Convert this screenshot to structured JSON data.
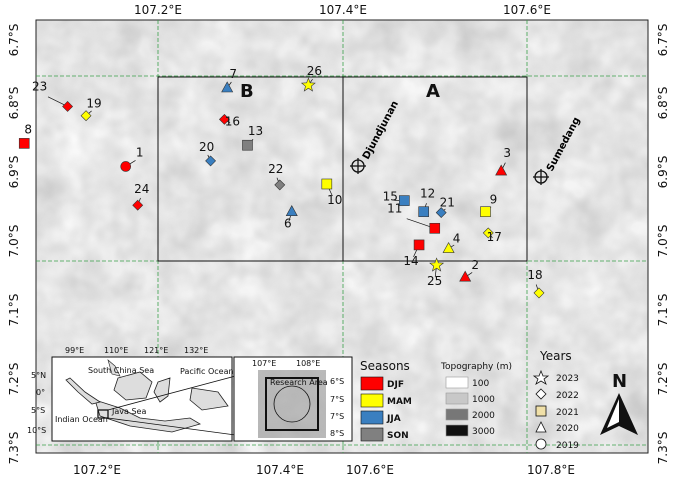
{
  "axes": {
    "x_ticks": [
      "107.2°E",
      "107.4°E",
      "107.6°E",
      "107.8°E"
    ],
    "y_ticks": [
      "6.7°S",
      "6.8°S",
      "6.9°S",
      "7.0°S",
      "7.1°S",
      "7.2°S",
      "7.3°S"
    ]
  },
  "regions": {
    "a_label": "A",
    "b_label": "B"
  },
  "towns": [
    {
      "name": "Djundjunan"
    },
    {
      "name": "Sumedang"
    }
  ],
  "events": [
    {
      "id": "1",
      "lon": 107.365,
      "lat": -6.898,
      "shape": "circle",
      "season": "DJF"
    },
    {
      "id": "2",
      "lon": 107.733,
      "lat": -7.018,
      "shape": "triangle",
      "season": "DJF"
    },
    {
      "id": "3",
      "lon": 107.772,
      "lat": -6.903,
      "shape": "triangle",
      "season": "DJF"
    },
    {
      "id": "4",
      "lon": 107.715,
      "lat": -6.987,
      "shape": "triangle",
      "season": "MAM"
    },
    {
      "id": "6",
      "lon": 107.545,
      "lat": -6.947,
      "shape": "triangle",
      "season": "JJA"
    },
    {
      "id": "7",
      "lon": 107.475,
      "lat": -6.813,
      "shape": "triangle",
      "season": "JJA"
    },
    {
      "id": "9",
      "lon": 107.755,
      "lat": -6.947,
      "shape": "square",
      "season": "MAM"
    },
    {
      "id": "10",
      "lon": 107.583,
      "lat": -6.917,
      "shape": "square",
      "season": "MAM"
    },
    {
      "id": "12",
      "lon": 107.688,
      "lat": -6.947,
      "shape": "square",
      "season": "JJA"
    },
    {
      "id": "13",
      "lon": 107.497,
      "lat": -6.875,
      "shape": "square",
      "season": "SON"
    },
    {
      "id": "14",
      "lon": 107.683,
      "lat": -6.983,
      "shape": "square",
      "season": "DJF"
    },
    {
      "id": "15",
      "lon": 107.667,
      "lat": -6.935,
      "shape": "square",
      "season": "JJA"
    },
    {
      "id": "16",
      "lon": 107.472,
      "lat": -6.847,
      "shape": "diamond",
      "season": "DJF"
    },
    {
      "id": "17",
      "lon": 107.758,
      "lat": -6.97,
      "shape": "diamond",
      "season": "MAM"
    },
    {
      "id": "18",
      "lon": 107.813,
      "lat": -7.035,
      "shape": "diamond",
      "season": "MAM"
    },
    {
      "id": "19",
      "lon": 107.322,
      "lat": -6.843,
      "shape": "diamond",
      "season": "MAM"
    },
    {
      "id": "20",
      "lon": 107.457,
      "lat": -6.892,
      "shape": "diamond",
      "season": "JJA"
    },
    {
      "id": "21",
      "lon": 107.707,
      "lat": -6.948,
      "shape": "diamond",
      "season": "JJA"
    },
    {
      "id": "22",
      "lon": 107.532,
      "lat": -6.918,
      "shape": "diamond",
      "season": "SON"
    },
    {
      "id": "23",
      "lon": 107.302,
      "lat": -6.833,
      "shape": "diamond",
      "season": "DJF"
    },
    {
      "id": "24",
      "lon": 107.378,
      "lat": -6.94,
      "shape": "diamond",
      "season": "DJF"
    },
    {
      "id": "25",
      "lon": 107.702,
      "lat": -7.005,
      "shape": "star",
      "season": "MAM"
    },
    {
      "id": "26",
      "lon": 107.563,
      "lat": -6.81,
      "shape": "star",
      "season": "MAM"
    },
    {
      "id": "8",
      "lon": 107.255,
      "lat": -6.873,
      "shape": "square",
      "season": "DJF"
    },
    {
      "id": "11",
      "lon": 107.7,
      "lat": -6.965,
      "shape": "square",
      "season": "DJF"
    }
  ],
  "legend": {
    "seasons_title": "Seasons",
    "seasons": [
      {
        "name": "DJF",
        "color": "#ff0000"
      },
      {
        "name": "MAM",
        "color": "#ffff00"
      },
      {
        "name": "JJA",
        "color": "#3a7fc0"
      },
      {
        "name": "SON",
        "color": "#808080"
      }
    ],
    "topo_title": "Topography (m)",
    "topo": [
      {
        "value": "100",
        "color": "#ffffff"
      },
      {
        "value": "1000",
        "color": "#c8c8c8"
      },
      {
        "value": "2000",
        "color": "#777777"
      },
      {
        "value": "3000",
        "color": "#111111"
      }
    ],
    "years_title": "Years",
    "years": [
      {
        "year": "2023",
        "shape": "star"
      },
      {
        "year": "2022",
        "shape": "diamond"
      },
      {
        "year": "2021",
        "shape": "square"
      },
      {
        "year": "2020",
        "shape": "triangle"
      },
      {
        "year": "2019",
        "shape": "circle"
      }
    ]
  },
  "north_label": "N",
  "inset1": {
    "lon_ticks": [
      "99°E",
      "110°E",
      "121°E",
      "132°E"
    ],
    "lat_ticks": [
      "5°N",
      "0°",
      "5°S",
      "10°S"
    ],
    "labels": [
      "South China Sea",
      "Pacific Ocean",
      "Java Sea",
      "Indian Ocean"
    ]
  },
  "inset2": {
    "lon_ticks": [
      "107°E",
      "108°E"
    ],
    "lat_ticks": [
      "6°S",
      "7°S",
      "7°S",
      "8°S"
    ],
    "label": "Research Area"
  }
}
